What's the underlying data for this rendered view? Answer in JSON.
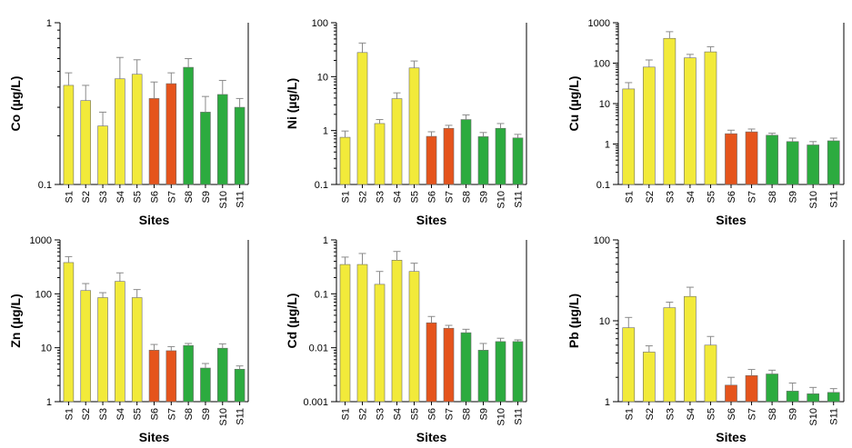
{
  "colors": {
    "group1": "#f2ea3a",
    "group2": "#e5541c",
    "group3": "#2cab3f",
    "bar_stroke": "#6b6b6b",
    "error_bar": "#8a8a8a"
  },
  "chart_data": [
    {
      "type": "bar",
      "ylabel": "Co (µg/L)",
      "xlabel": "Sites",
      "yscale": "log",
      "ylim": [
        0.1,
        1
      ],
      "yticks": [
        "0.1",
        "1"
      ],
      "categories": [
        "S1",
        "S2",
        "S3",
        "S4",
        "S5",
        "S6",
        "S7",
        "S8",
        "S9",
        "S10",
        "S11"
      ],
      "series": [
        {
          "values": [
            0.41,
            0.33,
            0.23,
            0.45,
            0.48,
            0.34,
            0.42,
            0.53,
            0.28,
            0.36,
            0.3
          ],
          "errors": [
            0.49,
            0.41,
            0.28,
            0.61,
            0.59,
            0.43,
            0.49,
            0.6,
            0.35,
            0.44,
            0.34
          ]
        }
      ],
      "colors": [
        "group1",
        "group1",
        "group1",
        "group1",
        "group1",
        "group2",
        "group2",
        "group3",
        "group3",
        "group3",
        "group3"
      ]
    },
    {
      "type": "bar",
      "ylabel": "Ni (µg/L)",
      "xlabel": "Sites",
      "yscale": "log",
      "ylim": [
        0.1,
        100
      ],
      "yticks": [
        "0.1",
        "1",
        "10",
        "100"
      ],
      "categories": [
        "S1",
        "S2",
        "S3",
        "S4",
        "S5",
        "S6",
        "S7",
        "S8",
        "S9",
        "S10",
        "S11"
      ],
      "series": [
        {
          "values": [
            0.75,
            28,
            1.35,
            3.9,
            14.5,
            0.78,
            1.1,
            1.6,
            0.77,
            1.1,
            0.73
          ],
          "errors": [
            0.98,
            42,
            1.6,
            5.0,
            19.5,
            0.95,
            1.25,
            1.95,
            0.92,
            1.35,
            0.85
          ]
        }
      ],
      "colors": [
        "group1",
        "group1",
        "group1",
        "group1",
        "group1",
        "group2",
        "group2",
        "group3",
        "group3",
        "group3",
        "group3"
      ]
    },
    {
      "type": "bar",
      "ylabel": "Cu (µg/L)",
      "xlabel": "Sites",
      "yscale": "log",
      "ylim": [
        0.1,
        1000
      ],
      "yticks": [
        "0.1",
        "1",
        "10",
        "100",
        "1000"
      ],
      "categories": [
        "S1",
        "S2",
        "S3",
        "S4",
        "S5",
        "S6",
        "S7",
        "S8",
        "S9",
        "S10",
        "S11"
      ],
      "series": [
        {
          "values": [
            23,
            80,
            410,
            135,
            190,
            1.8,
            2.0,
            1.65,
            1.15,
            0.95,
            1.2
          ],
          "errors": [
            33,
            120,
            600,
            165,
            255,
            2.2,
            2.35,
            1.85,
            1.4,
            1.15,
            1.4
          ]
        }
      ],
      "colors": [
        "group1",
        "group1",
        "group1",
        "group1",
        "group1",
        "group2",
        "group2",
        "group3",
        "group3",
        "group3",
        "group3"
      ]
    },
    {
      "type": "bar",
      "ylabel": "Zn (µg/L)",
      "xlabel": "Sites",
      "yscale": "log",
      "ylim": [
        1,
        1000
      ],
      "yticks": [
        "1",
        "10",
        "100",
        "1000"
      ],
      "categories": [
        "S1",
        "S2",
        "S3",
        "S4",
        "S5",
        "S6",
        "S7",
        "S8",
        "S9",
        "S10",
        "S11"
      ],
      "series": [
        {
          "values": [
            380,
            115,
            85,
            170,
            85,
            9.0,
            8.8,
            11,
            4.2,
            9.8,
            4.0
          ],
          "errors": [
            490,
            155,
            105,
            245,
            120,
            11.5,
            10.5,
            12,
            5.1,
            11.8,
            4.6
          ]
        }
      ],
      "colors": [
        "group1",
        "group1",
        "group1",
        "group1",
        "group1",
        "group2",
        "group2",
        "group3",
        "group3",
        "group3",
        "group3"
      ]
    },
    {
      "type": "bar",
      "ylabel": "Cd (µg/L)",
      "xlabel": "Sites",
      "yscale": "log",
      "ylim": [
        0.001,
        1
      ],
      "yticks": [
        "0.001",
        "0.01",
        "0.1",
        "1"
      ],
      "categories": [
        "S1",
        "S2",
        "S3",
        "S4",
        "S5",
        "S6",
        "S7",
        "S8",
        "S9",
        "S10",
        "S11"
      ],
      "series": [
        {
          "values": [
            0.35,
            0.35,
            0.15,
            0.42,
            0.26,
            0.029,
            0.023,
            0.019,
            0.009,
            0.013,
            0.013
          ],
          "errors": [
            0.48,
            0.56,
            0.26,
            0.61,
            0.37,
            0.038,
            0.026,
            0.022,
            0.012,
            0.015,
            0.014
          ]
        }
      ],
      "colors": [
        "group1",
        "group1",
        "group1",
        "group1",
        "group1",
        "group2",
        "group2",
        "group3",
        "group3",
        "group3",
        "group3"
      ]
    },
    {
      "type": "bar",
      "ylabel": "Pb (µg/L)",
      "xlabel": "Sites",
      "yscale": "log",
      "ylim": [
        1,
        100
      ],
      "yticks": [
        "1",
        "10",
        "100"
      ],
      "categories": [
        "S1",
        "S2",
        "S3",
        "S4",
        "S5",
        "S6",
        "S7",
        "S8",
        "S9",
        "S10",
        "S11"
      ],
      "series": [
        {
          "values": [
            8.2,
            4.1,
            14.5,
            20,
            5.0,
            1.6,
            2.1,
            2.2,
            1.35,
            1.25,
            1.3
          ],
          "errors": [
            11,
            4.9,
            17,
            26,
            6.4,
            2.0,
            2.5,
            2.45,
            1.7,
            1.5,
            1.45
          ]
        }
      ],
      "colors": [
        "group1",
        "group1",
        "group1",
        "group1",
        "group1",
        "group2",
        "group2",
        "group3",
        "group3",
        "group3",
        "group3"
      ]
    }
  ]
}
